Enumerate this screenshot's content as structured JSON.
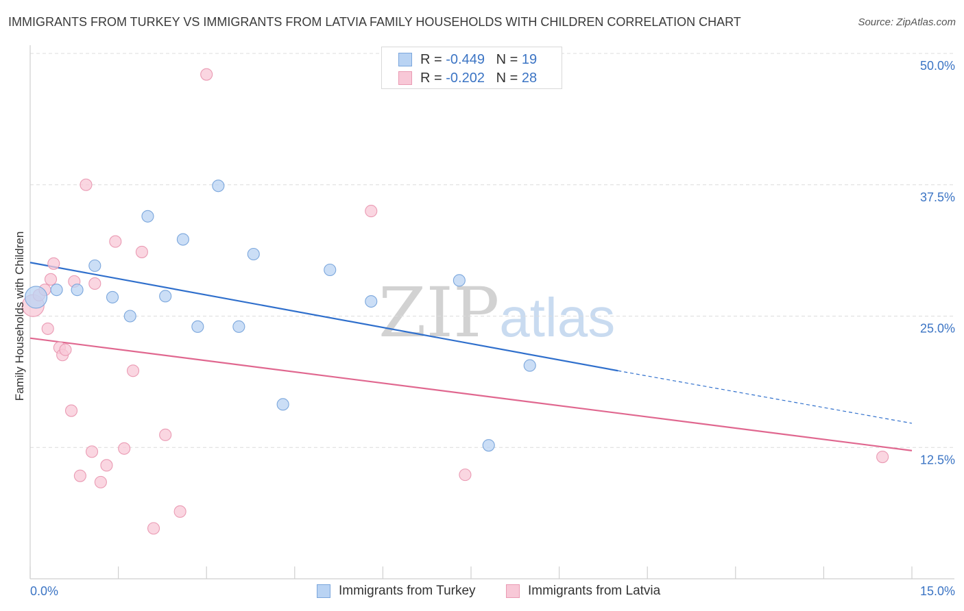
{
  "title": "IMMIGRANTS FROM TURKEY VS IMMIGRANTS FROM LATVIA FAMILY HOUSEHOLDS WITH CHILDREN CORRELATION CHART",
  "source": "Source: ZipAtlas.com",
  "watermark": {
    "zip": "ZIP",
    "atlas": "atlas"
  },
  "legend": {
    "turkey": {
      "r_label": "R = ",
      "r_value": "-0.449",
      "n_label": "N = ",
      "n_value": "19"
    },
    "latvia": {
      "r_label": "R = ",
      "r_value": "-0.202",
      "n_label": "N = ",
      "n_value": "28"
    }
  },
  "colors": {
    "turkey_fill": "#b9d3f3",
    "turkey_stroke": "#7aa6dc",
    "turkey_line": "#2f6fcc",
    "latvia_fill": "#f8c8d7",
    "latvia_stroke": "#ea9ab3",
    "latvia_line": "#e0678f",
    "axis_label": "#3b74c4",
    "grid": "#dcdcdc"
  },
  "chart_data": {
    "type": "scatter",
    "xlabel": "",
    "ylabel": "Family Households with Children",
    "xlim": [
      0,
      15
    ],
    "ylim": [
      0,
      50
    ],
    "x_tick_labels": [
      "0.0%",
      "15.0%"
    ],
    "y_ticks": [
      12.5,
      25.0,
      37.5,
      50.0
    ],
    "y_tick_labels": [
      "12.5%",
      "25.0%",
      "37.5%",
      "50.0%"
    ],
    "series": [
      {
        "name": "Immigrants from Turkey",
        "color": "#b9d3f3",
        "points": [
          {
            "x": 0.1,
            "y": 26.8,
            "size": "large"
          },
          {
            "x": 0.45,
            "y": 27.5
          },
          {
            "x": 0.8,
            "y": 27.5
          },
          {
            "x": 1.1,
            "y": 29.8
          },
          {
            "x": 1.4,
            "y": 26.8
          },
          {
            "x": 1.7,
            "y": 25.0
          },
          {
            "x": 2.0,
            "y": 34.5
          },
          {
            "x": 2.3,
            "y": 26.9
          },
          {
            "x": 2.6,
            "y": 32.3
          },
          {
            "x": 2.85,
            "y": 24.0
          },
          {
            "x": 3.2,
            "y": 37.4
          },
          {
            "x": 3.55,
            "y": 24.0
          },
          {
            "x": 3.8,
            "y": 30.9
          },
          {
            "x": 4.3,
            "y": 16.6
          },
          {
            "x": 5.1,
            "y": 29.4
          },
          {
            "x": 5.8,
            "y": 26.4
          },
          {
            "x": 7.3,
            "y": 28.4
          },
          {
            "x": 7.8,
            "y": 12.7
          },
          {
            "x": 8.5,
            "y": 20.3
          }
        ],
        "trend": {
          "x0": 0,
          "y0": 30.1,
          "x1": 10.0,
          "y1": 19.8,
          "dash_x1": 15.0,
          "dash_y1": 14.8
        }
      },
      {
        "name": "Immigrants from Latvia",
        "color": "#f8c8d7",
        "points": [
          {
            "x": 0.05,
            "y": 26.0,
            "size": "large"
          },
          {
            "x": 0.15,
            "y": 27.0
          },
          {
            "x": 0.25,
            "y": 27.5
          },
          {
            "x": 0.3,
            "y": 23.8
          },
          {
            "x": 0.35,
            "y": 28.5
          },
          {
            "x": 0.4,
            "y": 30.0
          },
          {
            "x": 0.5,
            "y": 22.0
          },
          {
            "x": 0.55,
            "y": 21.3
          },
          {
            "x": 0.6,
            "y": 21.8
          },
          {
            "x": 0.7,
            "y": 16.0
          },
          {
            "x": 0.75,
            "y": 28.3
          },
          {
            "x": 0.85,
            "y": 9.8
          },
          {
            "x": 0.95,
            "y": 37.5
          },
          {
            "x": 1.05,
            "y": 12.1
          },
          {
            "x": 1.1,
            "y": 28.1
          },
          {
            "x": 1.2,
            "y": 9.2
          },
          {
            "x": 1.3,
            "y": 10.8
          },
          {
            "x": 1.45,
            "y": 32.1
          },
          {
            "x": 1.6,
            "y": 12.4
          },
          {
            "x": 1.75,
            "y": 19.8
          },
          {
            "x": 1.9,
            "y": 31.1
          },
          {
            "x": 2.1,
            "y": 4.8
          },
          {
            "x": 2.3,
            "y": 13.7
          },
          {
            "x": 2.55,
            "y": 6.4
          },
          {
            "x": 3.0,
            "y": 48.0
          },
          {
            "x": 5.8,
            "y": 35.0
          },
          {
            "x": 7.4,
            "y": 9.9
          },
          {
            "x": 14.5,
            "y": 11.6
          }
        ],
        "trend": {
          "x0": 0,
          "y0": 22.9,
          "x1": 15.0,
          "y1": 12.2
        }
      }
    ]
  }
}
